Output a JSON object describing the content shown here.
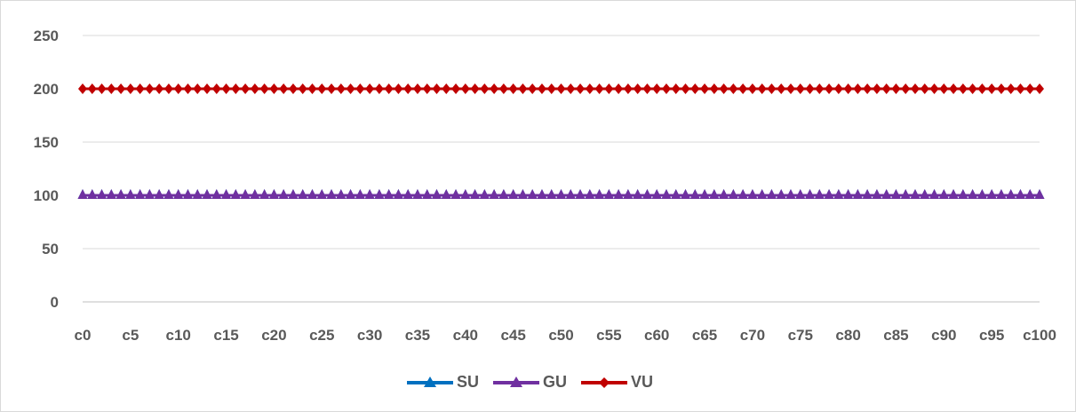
{
  "chart_data": {
    "type": "line",
    "title": "",
    "xlabel": "",
    "ylabel": "",
    "ylim": [
      0,
      250
    ],
    "yticks": [
      0,
      50,
      100,
      150,
      200,
      250
    ],
    "x_label_step": 5,
    "grid": true,
    "legend_position": "bottom",
    "categories": [
      "c0",
      "c1",
      "c2",
      "c3",
      "c4",
      "c5",
      "c6",
      "c7",
      "c8",
      "c9",
      "c10",
      "c11",
      "c12",
      "c13",
      "c14",
      "c15",
      "c16",
      "c17",
      "c18",
      "c19",
      "c20",
      "c21",
      "c22",
      "c23",
      "c24",
      "c25",
      "c26",
      "c27",
      "c28",
      "c29",
      "c30",
      "c31",
      "c32",
      "c33",
      "c34",
      "c35",
      "c36",
      "c37",
      "c38",
      "c39",
      "c40",
      "c41",
      "c42",
      "c43",
      "c44",
      "c45",
      "c46",
      "c47",
      "c48",
      "c49",
      "c50",
      "c51",
      "c52",
      "c53",
      "c54",
      "c55",
      "c56",
      "c57",
      "c58",
      "c59",
      "c60",
      "c61",
      "c62",
      "c63",
      "c64",
      "c65",
      "c66",
      "c67",
      "c68",
      "c69",
      "c70",
      "c71",
      "c72",
      "c73",
      "c74",
      "c75",
      "c76",
      "c77",
      "c78",
      "c79",
      "c80",
      "c81",
      "c82",
      "c83",
      "c84",
      "c85",
      "c86",
      "c87",
      "c88",
      "c89",
      "c90",
      "c91",
      "c92",
      "c93",
      "c94",
      "c95",
      "c96",
      "c97",
      "c98",
      "c99",
      "c100"
    ],
    "series": [
      {
        "name": "SU",
        "color": "#0070c0",
        "marker": "triangle",
        "constant_value": 100
      },
      {
        "name": "GU",
        "color": "#7030a0",
        "marker": "triangle",
        "constant_value": 100
      },
      {
        "name": "VU",
        "color": "#c00000",
        "marker": "diamond",
        "constant_value": 200
      }
    ]
  }
}
